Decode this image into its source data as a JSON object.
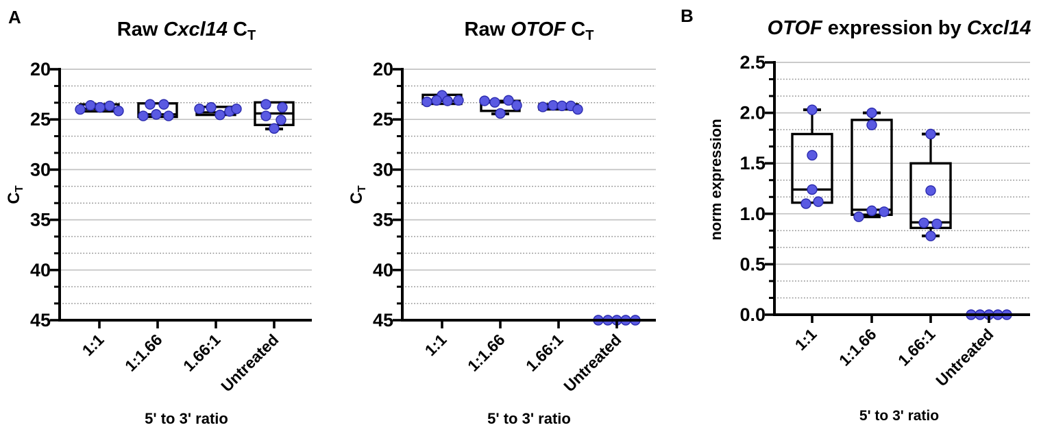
{
  "panels": [
    {
      "letter": "A"
    },
    {
      "letter": "B"
    }
  ],
  "colors": {
    "background": "#ffffff",
    "dot_fill": "#5a5ae2",
    "dot_stroke": "#2a2aad",
    "box_stroke": "#000000",
    "grid_major": "#c3c3c3",
    "grid_minor": "#8f8f8f",
    "axis": "#000000",
    "text": "#000000"
  },
  "chart_data": [
    {
      "id": "raw-cxcl14-ct",
      "type": "box-scatter",
      "title_parts": [
        {
          "text": "Raw "
        },
        {
          "text": "Cxcl14",
          "italic": true
        },
        {
          "text": " C"
        },
        {
          "text": "T",
          "sub": true
        }
      ],
      "y_title_parts": [
        {
          "text": "C"
        },
        {
          "text": "T",
          "sub": true
        }
      ],
      "x_title": "5' to 3' ratio",
      "y_axis": {
        "min": 20,
        "max": 45,
        "step": 5,
        "reversed": true,
        "minors_per_interval": 2,
        "tick_labels": [
          "20",
          "25",
          "30",
          "35",
          "40",
          "45"
        ]
      },
      "categories": [
        "1:1",
        "1:1.66",
        "1.66:1",
        "Untreated"
      ],
      "groups": [
        {
          "box": {
            "lo": 23.5,
            "q1": 23.5,
            "med": 23.95,
            "q3": 24.2,
            "hi": 24.2
          },
          "points": [
            [
              -28,
              24.0
            ],
            [
              -13,
              23.6
            ],
            [
              1,
              23.8
            ],
            [
              15,
              23.65
            ],
            [
              28,
              24.15
            ]
          ]
        },
        {
          "box": {
            "lo": 23.4,
            "q1": 23.4,
            "med": 24.5,
            "q3": 24.75,
            "hi": 24.75
          },
          "points": [
            [
              -21,
              24.65
            ],
            [
              -11,
              23.5
            ],
            [
              -2,
              24.5
            ],
            [
              9,
              23.5
            ],
            [
              16,
              24.65
            ]
          ]
        },
        {
          "box": {
            "lo": 23.75,
            "q1": 23.75,
            "med": 24.3,
            "q3": 24.55,
            "hi": 24.55
          },
          "points": [
            [
              -24,
              23.95
            ],
            [
              -7,
              23.8
            ],
            [
              6,
              24.55
            ],
            [
              20,
              24.2
            ],
            [
              30,
              23.95
            ]
          ]
        },
        {
          "box": {
            "lo": 23.3,
            "q1": 23.3,
            "med": 24.4,
            "q3": 25.55,
            "hi": 25.95
          },
          "points": [
            [
              -12,
              23.5
            ],
            [
              12,
              23.8
            ],
            [
              -12,
              24.65
            ],
            [
              10,
              25.05
            ],
            [
              0,
              25.9
            ]
          ]
        }
      ]
    },
    {
      "id": "raw-otof-ct",
      "type": "box-scatter",
      "title_parts": [
        {
          "text": "Raw "
        },
        {
          "text": "OTOF",
          "italic": true
        },
        {
          "text": " C"
        },
        {
          "text": "T",
          "sub": true
        }
      ],
      "y_title_parts": [
        {
          "text": "C"
        },
        {
          "text": "T",
          "sub": true
        }
      ],
      "x_title": "5' to 3' ratio",
      "y_axis": {
        "min": 20,
        "max": 45,
        "step": 5,
        "reversed": true,
        "minors_per_interval": 2,
        "tick_labels": [
          "20",
          "25",
          "30",
          "35",
          "40",
          "45"
        ]
      },
      "categories": [
        "1:1",
        "1:1.66",
        "1.66:1",
        "Untreated"
      ],
      "groups": [
        {
          "box": {
            "lo": 22.55,
            "q1": 22.55,
            "med": 23.15,
            "q3": 23.45,
            "hi": 23.45
          },
          "points": [
            [
              0,
              22.6
            ],
            [
              -22,
              23.25
            ],
            [
              -8,
              23.1
            ],
            [
              8,
              23.15
            ],
            [
              24,
              23.1
            ]
          ]
        },
        {
          "box": {
            "lo": 23.15,
            "q1": 23.15,
            "med": 23.3,
            "q3": 24.15,
            "hi": 24.45
          },
          "points": [
            [
              -23,
              23.15
            ],
            [
              -8,
              23.3
            ],
            [
              12,
              23.1
            ],
            [
              24,
              23.6
            ],
            [
              0,
              24.4
            ]
          ]
        },
        {
          "box": {
            "lo": 23.5,
            "q1": 23.5,
            "med": 23.75,
            "q3": 24.0,
            "hi": 24.0
          },
          "points": [
            [
              -23,
              23.75
            ],
            [
              -8,
              23.6
            ],
            [
              5,
              23.65
            ],
            [
              18,
              23.65
            ],
            [
              28,
              24.0
            ]
          ]
        },
        {
          "box": null,
          "points": [
            [
              -27,
              45
            ],
            [
              -13,
              45
            ],
            [
              0,
              45
            ],
            [
              13,
              45
            ],
            [
              27,
              45
            ]
          ]
        }
      ]
    },
    {
      "id": "otof-expression-by-cxcl14",
      "type": "box-scatter",
      "title_parts": [
        {
          "text": "OTOF",
          "italic": true
        },
        {
          "text": " expression by "
        },
        {
          "text": "Cxcl14",
          "italic": true
        }
      ],
      "y_title_parts": [
        {
          "text": "norm expression"
        }
      ],
      "x_title": "5' to 3' ratio",
      "y_axis": {
        "min": 0,
        "max": 2.5,
        "step": 0.5,
        "reversed": false,
        "minors_per_interval": 2,
        "tick_labels": [
          "0.0",
          "0.5",
          "1.0",
          "1.5",
          "2.0",
          "2.5"
        ]
      },
      "categories": [
        "1:1",
        "1:1.66",
        "1.66:1",
        "Untreated"
      ],
      "groups": [
        {
          "box": {
            "lo": 1.11,
            "q1": 1.11,
            "med": 1.24,
            "q3": 1.79,
            "hi": 2.03
          },
          "points": [
            [
              0,
              2.03
            ],
            [
              0,
              1.58
            ],
            [
              0,
              1.24
            ],
            [
              -9,
              1.1
            ],
            [
              9,
              1.12
            ]
          ]
        },
        {
          "box": {
            "lo": 0.97,
            "q1": 0.99,
            "med": 1.04,
            "q3": 1.93,
            "hi": 2.0
          },
          "points": [
            [
              0,
              2.0
            ],
            [
              0,
              1.88
            ],
            [
              -19,
              0.97
            ],
            [
              0,
              1.03
            ],
            [
              18,
              1.02
            ]
          ]
        },
        {
          "box": {
            "lo": 0.78,
            "q1": 0.86,
            "med": 0.915,
            "q3": 1.5,
            "hi": 1.79
          },
          "points": [
            [
              0,
              1.79
            ],
            [
              0,
              1.23
            ],
            [
              -10,
              0.91
            ],
            [
              9,
              0.9
            ],
            [
              0,
              0.78
            ]
          ]
        },
        {
          "box": null,
          "points": [
            [
              -26,
              0
            ],
            [
              -13,
              0
            ],
            [
              0,
              0
            ],
            [
              13,
              0
            ],
            [
              26,
              0
            ]
          ]
        }
      ]
    }
  ]
}
